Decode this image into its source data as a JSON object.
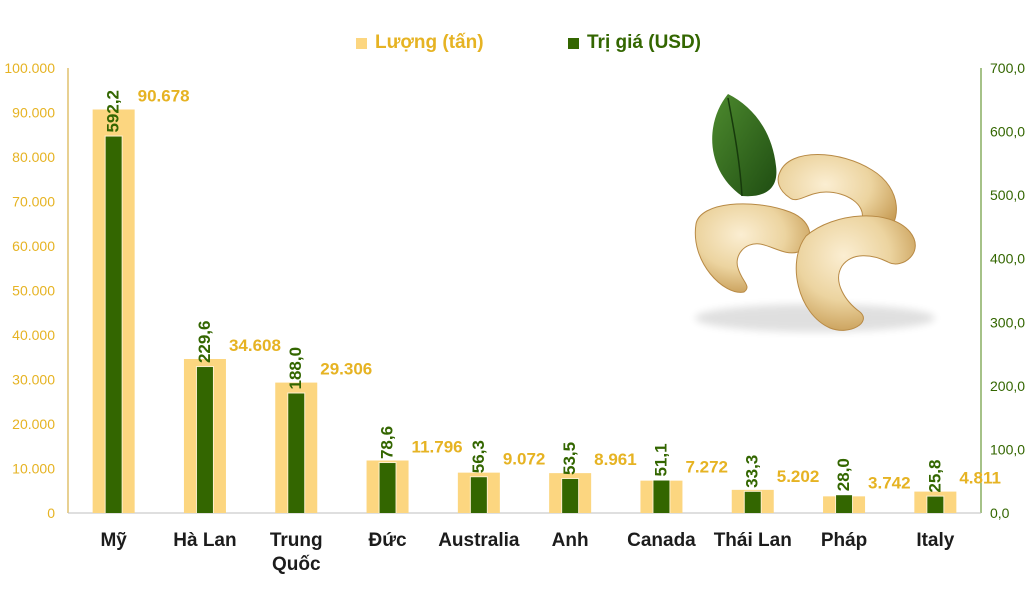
{
  "chart_data": {
    "type": "bar",
    "categories": [
      "Mỹ",
      "Hà Lan",
      "Trung\nQuốc",
      "Đức",
      "Australia",
      "Anh",
      "Canada",
      "Thái Lan",
      "Pháp",
      "Italy"
    ],
    "series": [
      {
        "name": "Lượng (tấn)",
        "axis": "left",
        "values": [
          90678,
          34608,
          29306,
          11796,
          9072,
          8961,
          7272,
          5202,
          3742,
          4811
        ],
        "labels": [
          "90.678",
          "34.608",
          "29.306",
          "11.796",
          "9.072",
          "8.961",
          "7.272",
          "5.202",
          "3.742",
          "4.811"
        ],
        "color": "#fcd680",
        "label_color": "#e6b323"
      },
      {
        "name": "Trị giá (USD)",
        "axis": "right",
        "values": [
          592.2,
          229.6,
          188.0,
          78.6,
          56.3,
          53.5,
          51.1,
          33.3,
          28.0,
          25.8
        ],
        "labels": [
          "592,2",
          "229,6",
          "188,0",
          "78,6",
          "56,3",
          "53,5",
          "51,1",
          "33,3",
          "28,0",
          "25,8"
        ],
        "color": "#336600",
        "label_color": "#336600"
      }
    ],
    "y_left": {
      "lim": [
        0,
        100000
      ],
      "ticks": [
        "0",
        "10.000",
        "20.000",
        "30.000",
        "40.000",
        "50.000",
        "60.000",
        "70.000",
        "80.000",
        "90.000",
        "100.000"
      ],
      "tick_color": "#e6b323"
    },
    "y_right": {
      "lim": [
        0,
        700
      ],
      "ticks": [
        "0,0",
        "100,0",
        "200,0",
        "300,0",
        "400,0",
        "500,0",
        "600,0",
        "700,0"
      ],
      "tick_color": "#336600"
    },
    "legend_position": "top-center",
    "grid": false,
    "decorative_image": "cashew-nuts-with-leaf"
  }
}
